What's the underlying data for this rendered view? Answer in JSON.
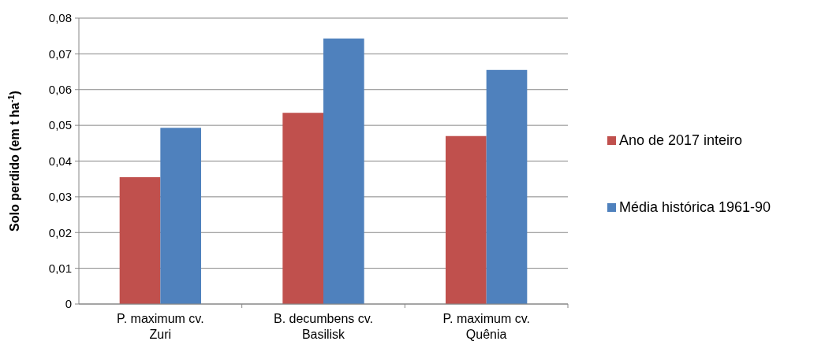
{
  "chart_data": {
    "type": "bar",
    "ylabel": "Solo perdido (em t ha$^{-1}$)",
    "categories": [
      "P. maximum cv. Zuri",
      "B. decumbens cv. Basilisk",
      "P. maximum cv. Quênia"
    ],
    "series": [
      {
        "name": "Ano de 2017 inteiro",
        "color": "#c0504d",
        "values": [
          0.0355,
          0.0535,
          0.047
        ]
      },
      {
        "name": "Média histórica 1961-90",
        "color": "#4f81bd",
        "values": [
          0.0493,
          0.0743,
          0.0655
        ]
      }
    ],
    "ylim": [
      0,
      0.08
    ],
    "yticks": [
      0,
      {
        "value": 0.01,
        "label": "0,01"
      },
      {
        "value": 0.02,
        "label": "0,02"
      },
      {
        "value": 0.03,
        "label": "0,03"
      },
      {
        "value": 0.04,
        "label": "0,04"
      },
      {
        "value": 0.05,
        "label": "0,05"
      },
      {
        "value": 0.06,
        "label": "0,06"
      },
      {
        "value": 0.07,
        "label": "0,07"
      },
      {
        "value": 0.08,
        "label": "0,08"
      }
    ],
    "grid": "y",
    "legend": "right"
  }
}
